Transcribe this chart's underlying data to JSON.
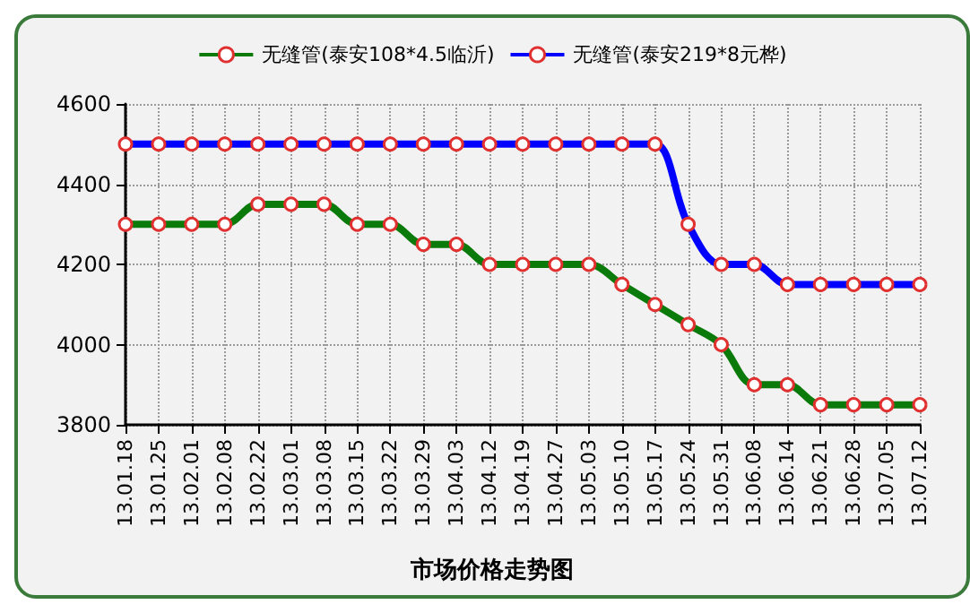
{
  "chart_data": {
    "type": "line",
    "title": "市场价格走势图",
    "categories": [
      "13.01.18",
      "13.01.25",
      "13.02.01",
      "13.02.08",
      "13.02.22",
      "13.03.01",
      "13.03.08",
      "13.03.15",
      "13.03.22",
      "13.03.29",
      "13.04.03",
      "13.04.12",
      "13.04.19",
      "13.04.27",
      "13.05.03",
      "13.05.10",
      "13.05.17",
      "13.05.24",
      "13.05.31",
      "13.06.08",
      "13.06.14",
      "13.06.21",
      "13.06.28",
      "13.07.05",
      "13.07.12"
    ],
    "series": [
      {
        "name": "无缝管(泰安108*4.5临沂)",
        "color": "#0a7a0a",
        "values": [
          4300,
          4300,
          4300,
          4300,
          4350,
          4350,
          4350,
          4300,
          4300,
          4250,
          4250,
          4200,
          4200,
          4200,
          4200,
          4150,
          4100,
          4050,
          4000,
          3900,
          3900,
          3850,
          3850,
          3850,
          3850
        ]
      },
      {
        "name": "无缝管(泰安219*8元桦)",
        "color": "#0000ff",
        "values": [
          4500,
          4500,
          4500,
          4500,
          4500,
          4500,
          4500,
          4500,
          4500,
          4500,
          4500,
          4500,
          4500,
          4500,
          4500,
          4500,
          4500,
          4300,
          4200,
          4200,
          4150,
          4150,
          4150,
          4150,
          4150
        ]
      }
    ],
    "ylim": [
      3800,
      4600
    ],
    "yticks": [
      3800,
      4000,
      4200,
      4400,
      4600
    ],
    "grid": true,
    "legend": "top",
    "marker": "circle",
    "line_style": "solid"
  }
}
